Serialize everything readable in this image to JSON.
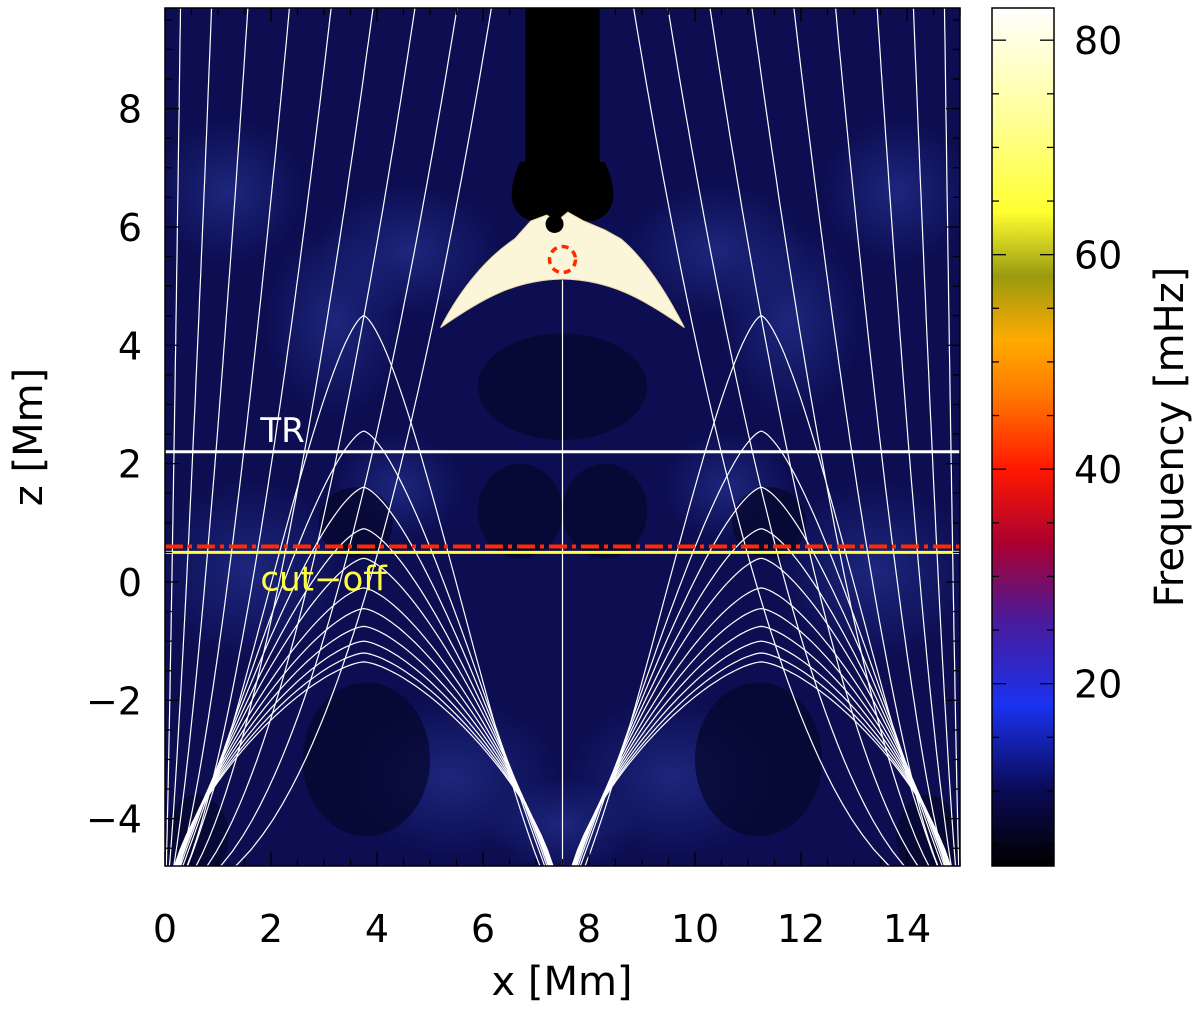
{
  "chart_data": {
    "type": "heatmap",
    "title": "",
    "xlabel": "x [Mm]",
    "ylabel": "z [Mm]",
    "xlim": [
      0,
      15
    ],
    "ylim": [
      -4.8,
      9.7
    ],
    "x_ticks": [
      0,
      2,
      4,
      6,
      8,
      10,
      12,
      14
    ],
    "x_tick_labels": [
      "0",
      "2",
      "4",
      "6",
      "8",
      "10",
      "12",
      "14"
    ],
    "y_ticks": [
      -4,
      -2,
      0,
      2,
      4,
      6,
      8
    ],
    "y_tick_labels": [
      "−4",
      "−2",
      "0",
      "2",
      "4",
      "6",
      "8"
    ],
    "colorbar": {
      "label": "Frequency [mHz]",
      "range": [
        3,
        83
      ],
      "ticks": [
        20,
        40,
        60,
        80
      ],
      "tick_labels": [
        "20",
        "40",
        "60",
        "80"
      ],
      "stops": [
        {
          "v": 3,
          "color": "#000000"
        },
        {
          "v": 10,
          "color": "#0a0a55"
        },
        {
          "v": 18,
          "color": "#1a32f0"
        },
        {
          "v": 26,
          "color": "#4a1a9a"
        },
        {
          "v": 33,
          "color": "#aa0030"
        },
        {
          "v": 40,
          "color": "#ff1800"
        },
        {
          "v": 47,
          "color": "#ff7a00"
        },
        {
          "v": 52,
          "color": "#ffaa00"
        },
        {
          "v": 58,
          "color": "#9a9a10"
        },
        {
          "v": 64,
          "color": "#ffff30"
        },
        {
          "v": 72,
          "color": "#ffff90"
        },
        {
          "v": 83,
          "color": "#ffffff"
        }
      ]
    },
    "annotations": [
      {
        "name": "transition-region",
        "text": "TR",
        "z": 2.2,
        "color": "#ffffff"
      },
      {
        "name": "cut-off",
        "text": "cut−off",
        "z": 0.5,
        "color": "#ffff40"
      }
    ],
    "reference_line": {
      "z": 0.6,
      "style": "dash-dot",
      "color": "#ff2a00"
    },
    "marker": {
      "shape": "dashed circle",
      "x": 7.5,
      "z": 5.45,
      "color": "#ff2a00"
    },
    "field_lines": {
      "color": "#ffffff",
      "source_x": [
        0,
        7.5,
        15
      ]
    },
    "bright_region": {
      "peak_frequency_mhz": 83,
      "z_range": [
        4.3,
        6.2
      ],
      "x_range": [
        5.2,
        9.8
      ]
    }
  }
}
